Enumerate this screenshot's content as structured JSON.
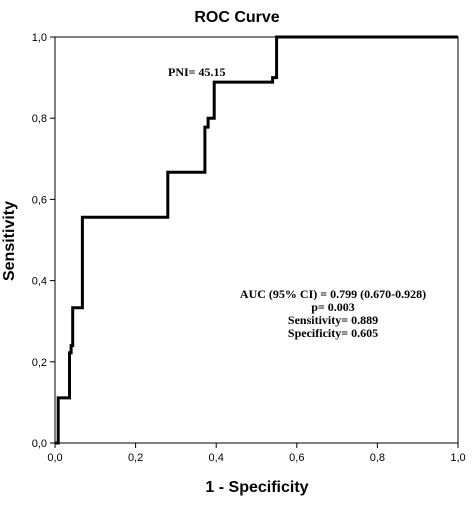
{
  "chart_data": {
    "type": "line",
    "title": "ROC Curve",
    "xlabel": "1 - Specificity",
    "ylabel": "Sensitivity",
    "xlim": [
      0,
      1
    ],
    "ylim": [
      0,
      1
    ],
    "x_ticks": [
      0,
      0.2,
      0.4,
      0.6,
      0.8,
      1.0
    ],
    "x_tick_labels": [
      "0,0",
      "0,2",
      "0,4",
      "0,6",
      "0,8",
      "1,0"
    ],
    "y_ticks": [
      0,
      0.2,
      0.4,
      0.6,
      0.8,
      1.0
    ],
    "y_tick_labels": [
      "0,0",
      "0,2",
      "0,4",
      "0,6",
      "0,8",
      "1,0"
    ],
    "grid": false,
    "series": [
      {
        "x": [
          0,
          0.008,
          0.008,
          0.036,
          0.036,
          0.04,
          0.04,
          0.044,
          0.044,
          0.052,
          0.052,
          0.068,
          0.068,
          0.28,
          0.28,
          0.372,
          0.372,
          0.38,
          0.38,
          0.395,
          0.395,
          0.54,
          0.54,
          0.55,
          0.55,
          1.0
        ],
        "y": [
          0,
          0,
          0.111,
          0.111,
          0.222,
          0.222,
          0.24,
          0.24,
          0.333,
          0.333,
          0.333,
          0.333,
          0.556,
          0.556,
          0.667,
          0.667,
          0.778,
          0.778,
          0.8,
          0.8,
          0.889,
          0.889,
          0.9,
          0.9,
          1.0,
          1.0
        ]
      }
    ],
    "color": "#000000",
    "annotations": {
      "cutoff": "PNI= 45.15",
      "auc": "AUC (95% CI) = 0.799 (0.670-0.928)",
      "p": "p= 0.003",
      "sensitivity": "Sensitivity= 0.889",
      "specificity": "Specificity= 0.605"
    }
  }
}
